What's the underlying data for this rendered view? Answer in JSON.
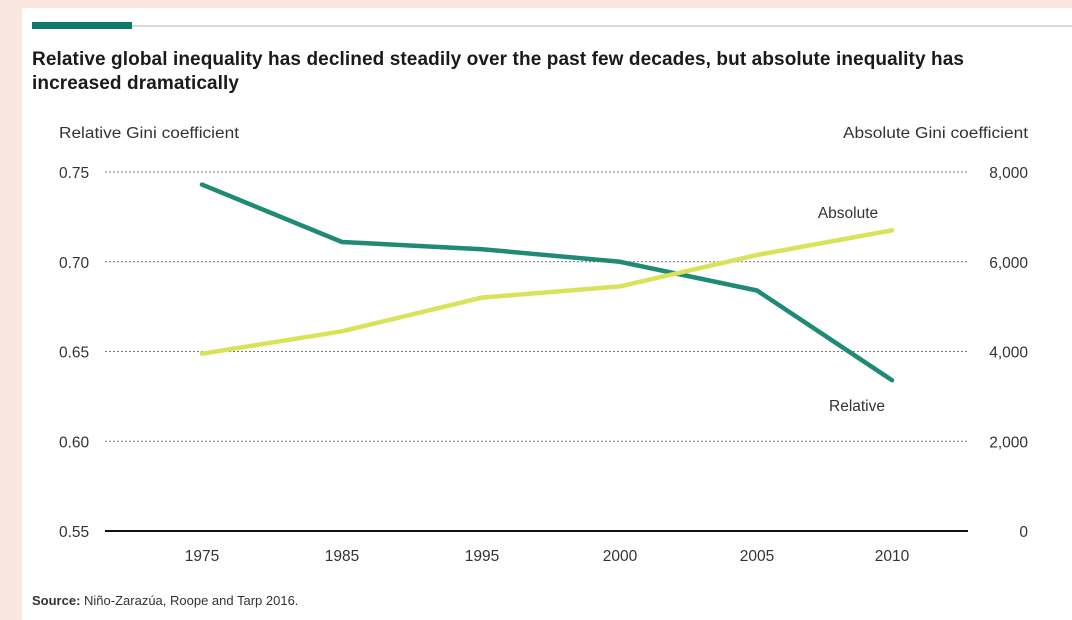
{
  "title": "Relative global inequality has declined steadily over the past few decades, but absolute inequality has increased dramatically",
  "source_label": "Source:",
  "source_text": " Niño-Zarazúa, Roope and Tarp 2016.",
  "colors": {
    "page_background": "#f9e6e0",
    "accent": "#0e7a6b",
    "relative_series": "#1f8a75",
    "absolute_series": "#d8e35a",
    "grid": "#777777",
    "text": "#333333"
  },
  "chart_data": {
    "type": "line",
    "title": "Relative global inequality has declined steadily over the past few decades, but absolute inequality has increased dramatically",
    "categories": [
      "1975",
      "1985",
      "1995",
      "2000",
      "2005",
      "2010"
    ],
    "y_left": {
      "label": "Relative Gini coefficient",
      "range": [
        0.55,
        0.75
      ],
      "ticks": [
        "0.55",
        "0.60",
        "0.65",
        "0.70",
        "0.75"
      ],
      "tick_values": [
        0.55,
        0.6,
        0.65,
        0.7,
        0.75
      ]
    },
    "y_right": {
      "label": "Absolute Gini coefficient",
      "range": [
        0,
        8000
      ],
      "ticks": [
        "0",
        "2,000",
        "4,000",
        "6,000",
        "8,000"
      ],
      "tick_values": [
        0,
        2000,
        4000,
        6000,
        8000
      ]
    },
    "grid": "dotted horizontal",
    "legend": "direct labels on lines",
    "series": [
      {
        "name": "Relative",
        "axis": "left",
        "color": "#1f8a75",
        "values": [
          0.743,
          0.711,
          0.707,
          0.7,
          0.684,
          0.634
        ]
      },
      {
        "name": "Absolute",
        "axis": "right",
        "color": "#d8e35a",
        "values": [
          3950,
          4450,
          5200,
          5450,
          6150,
          6700
        ]
      }
    ]
  }
}
